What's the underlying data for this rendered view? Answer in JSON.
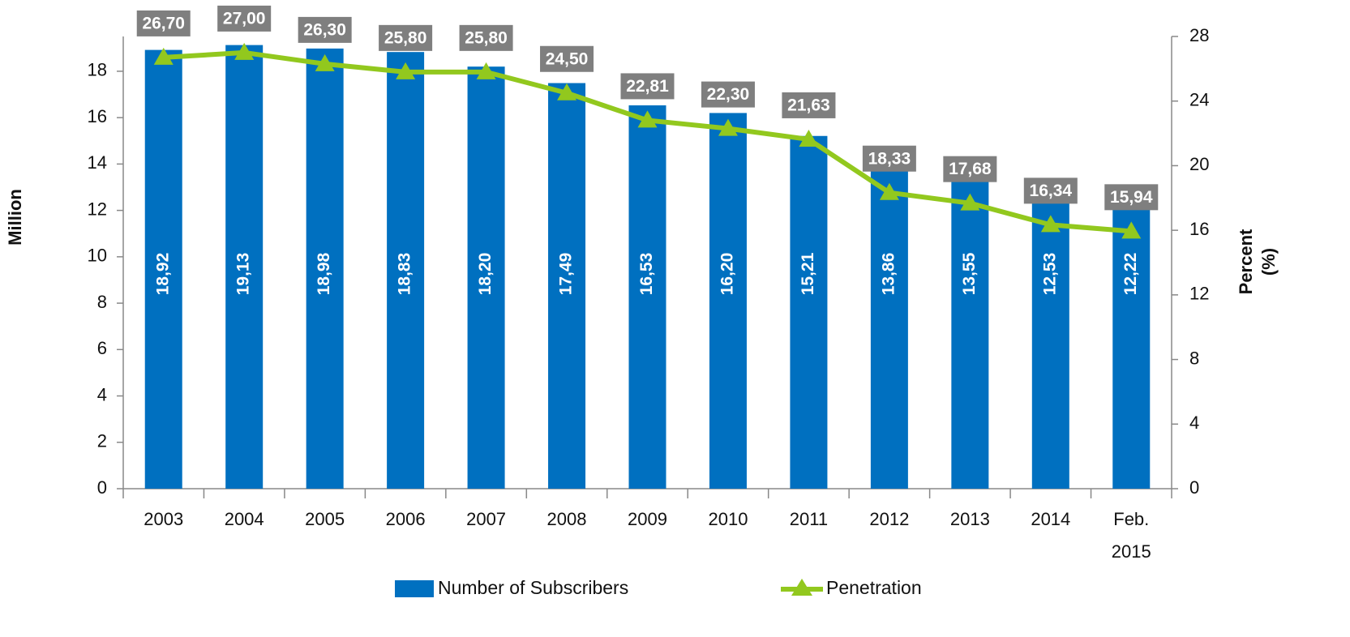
{
  "chart_data": {
    "type": "bar-line",
    "categories": [
      "2003",
      "2004",
      "2005",
      "2006",
      "2007",
      "2008",
      "2009",
      "2010",
      "2011",
      "2012",
      "2013",
      "2014",
      "Feb. 2015"
    ],
    "ylabel": "Million",
    "y2label": "Percent (%)",
    "ylim": [
      0,
      19.5
    ],
    "yticks": [
      0,
      2,
      4,
      6,
      8,
      10,
      12,
      14,
      16,
      18
    ],
    "y2lim": [
      0,
      28
    ],
    "y2ticks": [
      0,
      4,
      8,
      12,
      16,
      20,
      24,
      28
    ],
    "series": [
      {
        "name": "Number of Subscribers",
        "type": "bar",
        "color": "#0070c0",
        "values": [
          18.92,
          19.13,
          18.98,
          18.83,
          18.2,
          17.49,
          16.53,
          16.2,
          15.21,
          13.86,
          13.55,
          12.53,
          12.22
        ],
        "value_labels": [
          "18,92",
          "19,13",
          "18,98",
          "18,83",
          "18,20",
          "17,49",
          "16,53",
          "16,20",
          "15,21",
          "13,86",
          "13,55",
          "12,53",
          "12,22"
        ]
      },
      {
        "name": "Penetration",
        "type": "line",
        "axis": "y2",
        "color": "#92c81e",
        "values": [
          26.7,
          27.0,
          26.3,
          25.8,
          25.8,
          24.5,
          22.81,
          22.3,
          21.63,
          18.33,
          17.68,
          16.34,
          15.94
        ],
        "value_labels": [
          "26,70",
          "27,00",
          "26,30",
          "25,80",
          "25,80",
          "24,50",
          "22,81",
          "22,30",
          "21,63",
          "18,33",
          "17,68",
          "16,34",
          "15,94"
        ]
      }
    ]
  }
}
